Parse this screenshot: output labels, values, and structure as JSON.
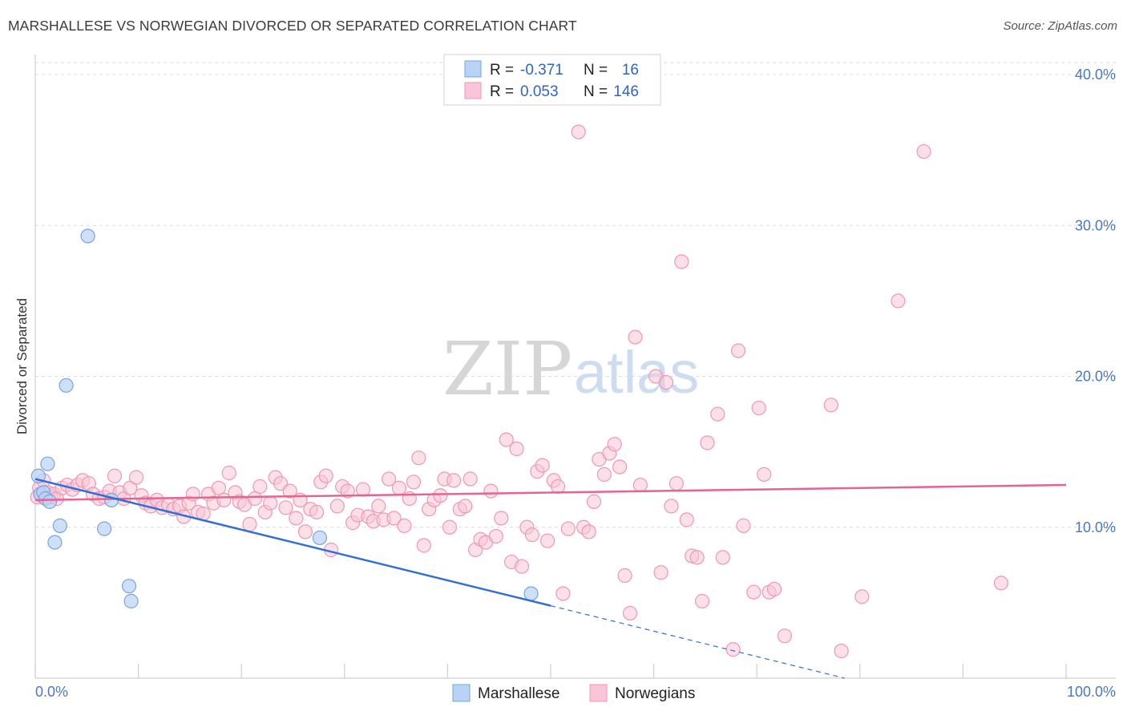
{
  "title": "MARSHALLESE VS NORWEGIAN DIVORCED OR SEPARATED CORRELATION CHART",
  "source": "Source: ZipAtlas.com",
  "watermark": {
    "zip": "ZIP",
    "atlas": "atlas"
  },
  "colors": {
    "marshallese_fill": "#b9d3f5",
    "marshallese_stroke": "#7aa3dc",
    "marshallese_line": "#2f6fd6",
    "norwegians_fill": "#f8c6d6",
    "norwegians_stroke": "#ee97b4",
    "norwegians_line": "#e8638f",
    "value_text": "#2f66c4"
  },
  "legend": {
    "rows": [
      {
        "r_label": "R =",
        "r_value": "-0.371",
        "n_label": "N =",
        "n_value": "16"
      },
      {
        "r_label": "R =",
        "r_value": "0.053",
        "n_label": "N =",
        "n_value": "146"
      }
    ]
  },
  "chart_data": {
    "type": "scatter",
    "xlabel": "",
    "ylabel": "Divorced or Separated",
    "xlim": [
      0,
      100
    ],
    "ylim": [
      0,
      40.8
    ],
    "x_tick_labels": [
      "0.0%",
      "100.0%"
    ],
    "y_ticks": [
      10,
      20,
      30,
      40
    ],
    "y_tick_labels": [
      "10.0%",
      "20.0%",
      "30.0%",
      "40.0%"
    ],
    "grid": "horizontal dashed",
    "legend_position": "top-center",
    "series": [
      {
        "name": "Marshallese",
        "points": [
          [
            0.3,
            13.4
          ],
          [
            0.5,
            12.2
          ],
          [
            0.8,
            12.3
          ],
          [
            1.0,
            11.9
          ],
          [
            1.2,
            14.2
          ],
          [
            1.4,
            11.7
          ],
          [
            1.9,
            9.0
          ],
          [
            2.4,
            10.1
          ],
          [
            3.0,
            19.4
          ],
          [
            5.1,
            29.3
          ],
          [
            6.7,
            9.9
          ],
          [
            7.4,
            11.8
          ],
          [
            9.1,
            6.1
          ],
          [
            9.3,
            5.1
          ],
          [
            27.6,
            9.3
          ],
          [
            48.1,
            5.6
          ]
        ],
        "trend": {
          "x": [
            0,
            50
          ],
          "y": [
            13.2,
            4.8
          ],
          "dashed_extension": {
            "x": [
              50,
              78.5
            ],
            "y": [
              4.8,
              0
            ]
          }
        }
      },
      {
        "name": "Norwegians",
        "points": [
          [
            0.2,
            12.0
          ],
          [
            0.4,
            12.6
          ],
          [
            0.6,
            12.1
          ],
          [
            0.8,
            13.1
          ],
          [
            1.0,
            11.9
          ],
          [
            1.2,
            12.3
          ],
          [
            1.5,
            12.0
          ],
          [
            1.8,
            12.2
          ],
          [
            2.1,
            11.9
          ],
          [
            2.6,
            12.6
          ],
          [
            3.1,
            12.8
          ],
          [
            3.6,
            12.5
          ],
          [
            4.1,
            12.8
          ],
          [
            4.6,
            13.1
          ],
          [
            5.2,
            12.9
          ],
          [
            5.6,
            12.2
          ],
          [
            6.2,
            11.9
          ],
          [
            6.7,
            12.0
          ],
          [
            7.2,
            12.4
          ],
          [
            7.7,
            13.4
          ],
          [
            8.2,
            12.3
          ],
          [
            8.6,
            11.9
          ],
          [
            9.2,
            12.6
          ],
          [
            9.8,
            13.3
          ],
          [
            10.3,
            12.1
          ],
          [
            10.7,
            11.6
          ],
          [
            11.2,
            11.4
          ],
          [
            11.8,
            11.8
          ],
          [
            12.3,
            11.3
          ],
          [
            12.9,
            11.5
          ],
          [
            13.4,
            11.2
          ],
          [
            14.0,
            11.4
          ],
          [
            14.4,
            10.7
          ],
          [
            14.9,
            11.6
          ],
          [
            15.3,
            12.2
          ],
          [
            15.8,
            11.0
          ],
          [
            16.3,
            10.9
          ],
          [
            16.8,
            12.2
          ],
          [
            17.3,
            11.6
          ],
          [
            17.8,
            12.6
          ],
          [
            18.3,
            11.8
          ],
          [
            18.8,
            13.6
          ],
          [
            19.4,
            12.3
          ],
          [
            19.8,
            11.7
          ],
          [
            20.3,
            11.5
          ],
          [
            20.8,
            10.2
          ],
          [
            21.3,
            11.9
          ],
          [
            21.8,
            12.7
          ],
          [
            22.3,
            11.0
          ],
          [
            22.8,
            11.6
          ],
          [
            23.3,
            13.3
          ],
          [
            23.8,
            12.9
          ],
          [
            24.3,
            11.3
          ],
          [
            24.7,
            12.4
          ],
          [
            25.3,
            10.6
          ],
          [
            25.7,
            11.8
          ],
          [
            26.2,
            9.7
          ],
          [
            26.7,
            11.2
          ],
          [
            27.3,
            11.0
          ],
          [
            27.7,
            13.0
          ],
          [
            28.2,
            13.4
          ],
          [
            28.7,
            8.5
          ],
          [
            29.3,
            11.4
          ],
          [
            29.8,
            12.7
          ],
          [
            30.3,
            12.4
          ],
          [
            30.8,
            10.3
          ],
          [
            31.3,
            10.8
          ],
          [
            31.8,
            12.5
          ],
          [
            32.3,
            10.7
          ],
          [
            32.8,
            10.4
          ],
          [
            33.3,
            11.4
          ],
          [
            33.8,
            10.5
          ],
          [
            34.3,
            13.2
          ],
          [
            34.8,
            10.6
          ],
          [
            35.3,
            12.6
          ],
          [
            35.8,
            10.1
          ],
          [
            36.3,
            11.9
          ],
          [
            36.7,
            13.0
          ],
          [
            37.2,
            14.6
          ],
          [
            37.7,
            8.8
          ],
          [
            38.2,
            11.2
          ],
          [
            38.7,
            11.8
          ],
          [
            39.3,
            12.1
          ],
          [
            39.7,
            13.2
          ],
          [
            40.2,
            10.0
          ],
          [
            40.6,
            13.1
          ],
          [
            41.2,
            11.2
          ],
          [
            41.7,
            11.4
          ],
          [
            42.2,
            13.2
          ],
          [
            42.7,
            8.5
          ],
          [
            43.2,
            9.2
          ],
          [
            43.7,
            9.0
          ],
          [
            44.2,
            12.4
          ],
          [
            44.7,
            9.4
          ],
          [
            45.2,
            10.6
          ],
          [
            45.7,
            15.8
          ],
          [
            46.2,
            7.7
          ],
          [
            46.7,
            15.2
          ],
          [
            47.2,
            7.4
          ],
          [
            47.7,
            10.0
          ],
          [
            48.2,
            9.5
          ],
          [
            48.7,
            13.7
          ],
          [
            49.2,
            14.1
          ],
          [
            49.7,
            9.1
          ],
          [
            50.3,
            13.1
          ],
          [
            50.7,
            12.7
          ],
          [
            51.2,
            5.6
          ],
          [
            51.7,
            9.9
          ],
          [
            52.7,
            36.2
          ],
          [
            53.2,
            10.0
          ],
          [
            53.7,
            9.7
          ],
          [
            54.2,
            11.7
          ],
          [
            54.7,
            14.5
          ],
          [
            55.2,
            13.5
          ],
          [
            55.7,
            14.9
          ],
          [
            56.2,
            15.5
          ],
          [
            56.7,
            14.0
          ],
          [
            57.2,
            6.8
          ],
          [
            57.7,
            4.3
          ],
          [
            58.2,
            22.6
          ],
          [
            58.7,
            12.8
          ],
          [
            60.2,
            20.0
          ],
          [
            60.7,
            7.0
          ],
          [
            61.2,
            19.6
          ],
          [
            61.7,
            11.4
          ],
          [
            62.2,
            12.9
          ],
          [
            62.7,
            27.6
          ],
          [
            63.2,
            10.5
          ],
          [
            63.7,
            8.1
          ],
          [
            64.2,
            8.0
          ],
          [
            64.7,
            5.1
          ],
          [
            65.2,
            15.6
          ],
          [
            66.2,
            17.5
          ],
          [
            66.7,
            8.0
          ],
          [
            67.7,
            1.9
          ],
          [
            68.2,
            21.7
          ],
          [
            68.7,
            10.1
          ],
          [
            69.7,
            5.7
          ],
          [
            70.2,
            17.9
          ],
          [
            70.7,
            13.5
          ],
          [
            71.2,
            5.7
          ],
          [
            71.7,
            5.9
          ],
          [
            72.7,
            2.8
          ],
          [
            77.2,
            18.1
          ],
          [
            78.2,
            1.8
          ],
          [
            80.2,
            5.4
          ],
          [
            83.7,
            25.0
          ],
          [
            86.2,
            34.9
          ],
          [
            93.7,
            6.3
          ]
        ],
        "trend": {
          "x": [
            0,
            100
          ],
          "y": [
            11.8,
            12.8
          ]
        }
      }
    ]
  }
}
